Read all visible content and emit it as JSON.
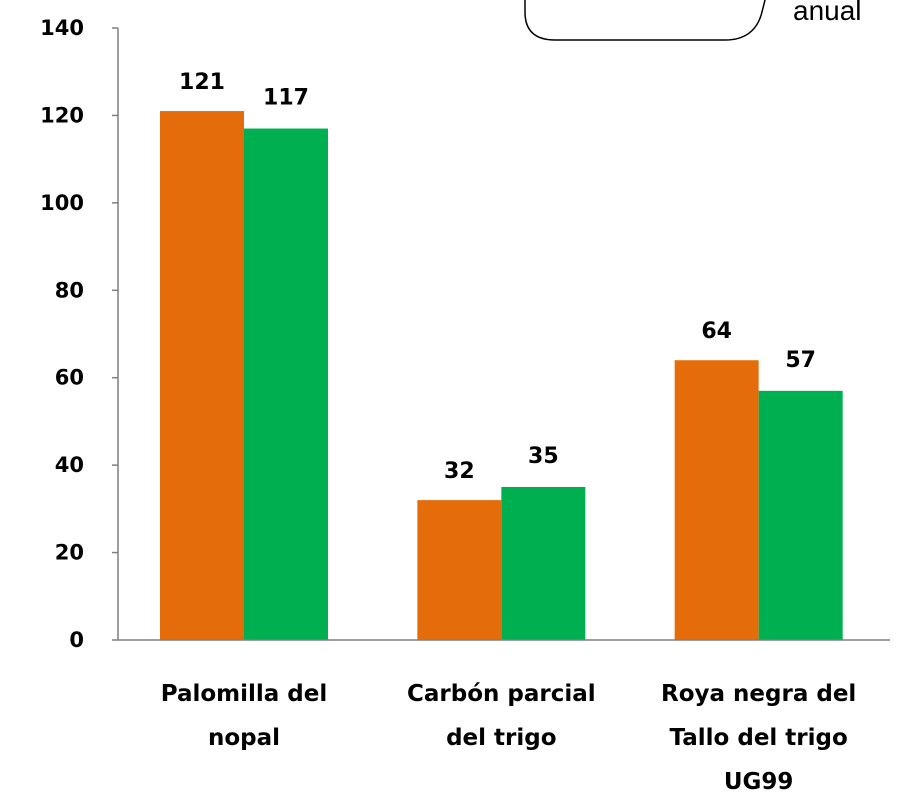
{
  "legend_fragment": "anual",
  "chart_data": {
    "type": "bar",
    "categories": [
      [
        "Palomilla del",
        "nopal"
      ],
      [
        "Carbón parcial",
        "del trigo"
      ],
      [
        "Roya negra del",
        "Tallo del trigo",
        "UG99"
      ]
    ],
    "series": [
      {
        "color": "#E46C0A",
        "values": [
          121,
          32,
          64
        ]
      },
      {
        "color": "#00B050",
        "values": [
          117,
          35,
          57
        ]
      }
    ],
    "ylim": [
      0,
      140
    ],
    "yticks": [
      0,
      20,
      40,
      60,
      80,
      100,
      120,
      140
    ],
    "grid": false
  }
}
